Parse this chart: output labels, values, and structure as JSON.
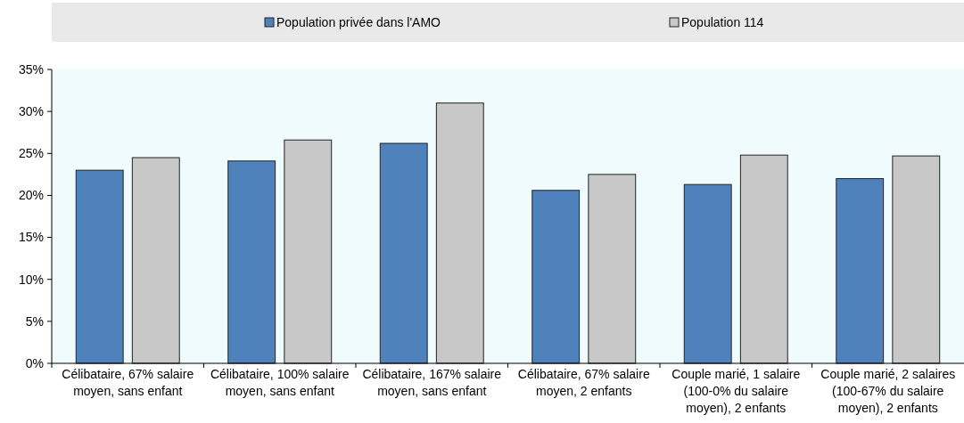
{
  "chart_data": {
    "type": "bar",
    "categories": [
      "Célibataire, 67% salaire moyen, sans enfant",
      "Célibataire, 100% salaire moyen, sans enfant",
      "Célibataire, 167% salaire moyen, sans enfant",
      "Célibataire, 67% salaire moyen, 2 enfants",
      "Couple marié, 1 salaire (100-0% du salaire moyen), 2 enfants",
      "Couple marié, 2 salaires (100-67% du salaire moyen), 2 enfants"
    ],
    "series": [
      {
        "name": "Population privée dans l'AMO",
        "color": "#4f81bd",
        "values": [
          23.0,
          24.1,
          26.2,
          20.6,
          21.3,
          22.0
        ]
      },
      {
        "name": "Population 114",
        "color": "#c8c8c8",
        "values": [
          24.5,
          26.6,
          31.0,
          22.5,
          24.8,
          24.7
        ]
      }
    ],
    "ylim": [
      0,
      35
    ],
    "yticks": [
      {
        "value": 0,
        "label": "0%"
      },
      {
        "value": 5,
        "label": "5%"
      },
      {
        "value": 10,
        "label": "10%"
      },
      {
        "value": 15,
        "label": "15%"
      },
      {
        "value": 20,
        "label": "20%"
      },
      {
        "value": 25,
        "label": "25%"
      },
      {
        "value": 30,
        "label": "30%"
      },
      {
        "value": 35,
        "label": "35%"
      }
    ],
    "grid": false,
    "legend": "top"
  }
}
